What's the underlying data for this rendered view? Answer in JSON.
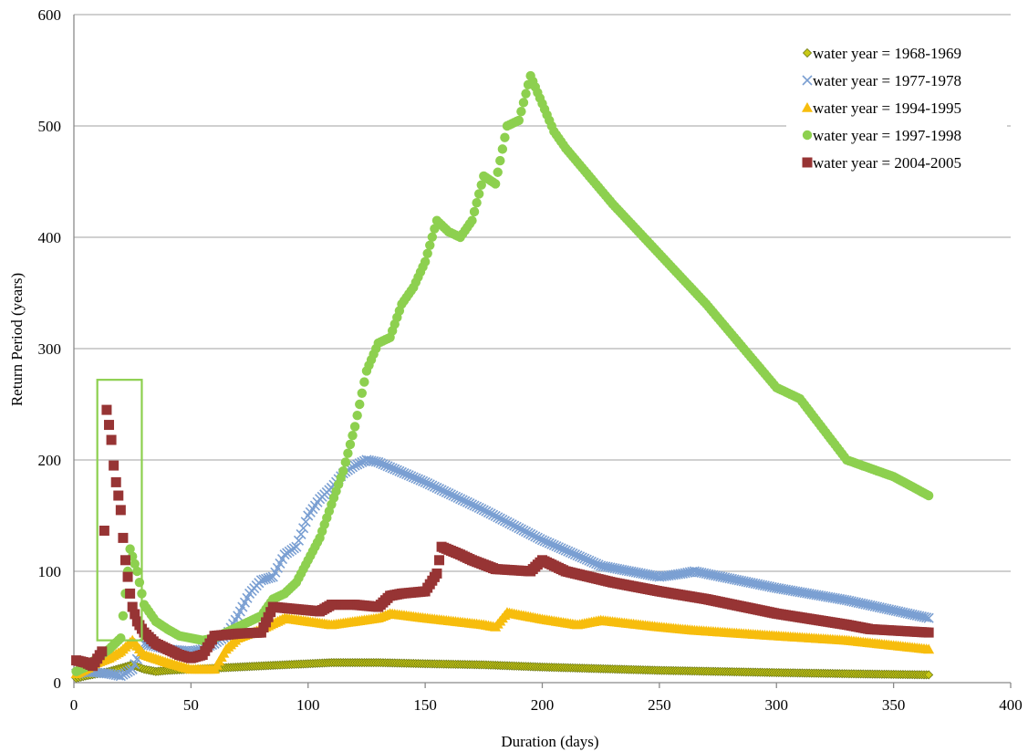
{
  "chart_data": {
    "type": "scatter",
    "title": "",
    "xlabel": "Duration (days)",
    "ylabel": "Return Period (years)",
    "xlim": [
      0,
      400
    ],
    "ylim": [
      0,
      600
    ],
    "xticks": [
      "0",
      "50",
      "100",
      "150",
      "200",
      "250",
      "300",
      "350",
      "400"
    ],
    "yticks": [
      "0",
      "100",
      "200",
      "300",
      "400",
      "500",
      "600"
    ],
    "grid": "horizontal",
    "legend_position": "top-right",
    "highlight_box": {
      "x": [
        10,
        29
      ],
      "y": [
        38,
        272
      ],
      "color": "#8DD04F"
    },
    "series": [
      {
        "name": "water year = 1968-1969",
        "marker": "diamond",
        "color": "#C9C916",
        "stroke": "#6E7A12",
        "points": [
          [
            1,
            4
          ],
          [
            5,
            6
          ],
          [
            10,
            8
          ],
          [
            15,
            10
          ],
          [
            20,
            13
          ],
          [
            25,
            16
          ],
          [
            30,
            12
          ],
          [
            35,
            10
          ],
          [
            40,
            11
          ],
          [
            50,
            12
          ],
          [
            60,
            13
          ],
          [
            70,
            14
          ],
          [
            80,
            15
          ],
          [
            90,
            16
          ],
          [
            100,
            17
          ],
          [
            110,
            18
          ],
          [
            120,
            18
          ],
          [
            130,
            18
          ],
          [
            150,
            17
          ],
          [
            175,
            16
          ],
          [
            200,
            14
          ],
          [
            250,
            11
          ],
          [
            300,
            9
          ],
          [
            330,
            8
          ],
          [
            365,
            7
          ]
        ]
      },
      {
        "name": "water year = 1977-1978",
        "marker": "x",
        "color": "#7A9FD2",
        "points": [
          [
            1,
            8
          ],
          [
            5,
            10
          ],
          [
            10,
            9
          ],
          [
            15,
            8
          ],
          [
            20,
            6
          ],
          [
            25,
            12
          ],
          [
            30,
            35
          ],
          [
            40,
            30
          ],
          [
            50,
            28
          ],
          [
            55,
            30
          ],
          [
            60,
            35
          ],
          [
            65,
            42
          ],
          [
            70,
            60
          ],
          [
            75,
            80
          ],
          [
            80,
            92
          ],
          [
            85,
            95
          ],
          [
            90,
            115
          ],
          [
            95,
            122
          ],
          [
            100,
            150
          ],
          [
            105,
            165
          ],
          [
            110,
            175
          ],
          [
            115,
            188
          ],
          [
            120,
            195
          ],
          [
            125,
            200
          ],
          [
            130,
            198
          ],
          [
            150,
            180
          ],
          [
            175,
            155
          ],
          [
            200,
            128
          ],
          [
            225,
            105
          ],
          [
            250,
            95
          ],
          [
            260,
            98
          ],
          [
            265,
            100
          ],
          [
            300,
            85
          ],
          [
            330,
            74
          ],
          [
            365,
            58
          ]
        ]
      },
      {
        "name": "water year = 1994-1995",
        "marker": "triangle",
        "color": "#F7BD0D",
        "points": [
          [
            1,
            8
          ],
          [
            5,
            12
          ],
          [
            10,
            18
          ],
          [
            15,
            22
          ],
          [
            20,
            28
          ],
          [
            25,
            38
          ],
          [
            30,
            25
          ],
          [
            40,
            18
          ],
          [
            50,
            12
          ],
          [
            60,
            12
          ],
          [
            65,
            30
          ],
          [
            70,
            40
          ],
          [
            80,
            48
          ],
          [
            90,
            58
          ],
          [
            100,
            55
          ],
          [
            110,
            52
          ],
          [
            120,
            55
          ],
          [
            130,
            58
          ],
          [
            135,
            62
          ],
          [
            150,
            58
          ],
          [
            175,
            52
          ],
          [
            180,
            50
          ],
          [
            185,
            63
          ],
          [
            200,
            57
          ],
          [
            215,
            52
          ],
          [
            225,
            56
          ],
          [
            250,
            50
          ],
          [
            265,
            47
          ],
          [
            300,
            42
          ],
          [
            330,
            38
          ],
          [
            365,
            30
          ]
        ]
      },
      {
        "name": "water year = 1997-1998",
        "marker": "circle",
        "color": "#8DD04F",
        "points": [
          [
            1,
            10
          ],
          [
            5,
            14
          ],
          [
            10,
            22
          ],
          [
            15,
            30
          ],
          [
            20,
            40
          ],
          [
            22,
            80
          ],
          [
            24,
            120
          ],
          [
            27,
            100
          ],
          [
            30,
            70
          ],
          [
            35,
            55
          ],
          [
            40,
            48
          ],
          [
            45,
            42
          ],
          [
            50,
            40
          ],
          [
            55,
            38
          ],
          [
            60,
            40
          ],
          [
            70,
            50
          ],
          [
            80,
            60
          ],
          [
            85,
            75
          ],
          [
            90,
            80
          ],
          [
            95,
            90
          ],
          [
            100,
            110
          ],
          [
            105,
            130
          ],
          [
            110,
            160
          ],
          [
            115,
            190
          ],
          [
            120,
            230
          ],
          [
            125,
            280
          ],
          [
            130,
            305
          ],
          [
            135,
            310
          ],
          [
            140,
            340
          ],
          [
            145,
            355
          ],
          [
            150,
            378
          ],
          [
            155,
            415
          ],
          [
            160,
            405
          ],
          [
            165,
            400
          ],
          [
            170,
            415
          ],
          [
            175,
            455
          ],
          [
            180,
            448
          ],
          [
            185,
            500
          ],
          [
            190,
            505
          ],
          [
            195,
            545
          ],
          [
            200,
            520
          ],
          [
            205,
            495
          ],
          [
            210,
            480
          ],
          [
            220,
            455
          ],
          [
            230,
            430
          ],
          [
            250,
            385
          ],
          [
            270,
            340
          ],
          [
            290,
            290
          ],
          [
            300,
            265
          ],
          [
            310,
            255
          ],
          [
            330,
            200
          ],
          [
            350,
            185
          ],
          [
            365,
            168
          ]
        ]
      },
      {
        "name": "water year = 2004-2005",
        "marker": "square",
        "color": "#973434",
        "points": [
          [
            1,
            20
          ],
          [
            5,
            18
          ],
          [
            8,
            15
          ],
          [
            12,
            28
          ],
          [
            14,
            245
          ],
          [
            16,
            218
          ],
          [
            17,
            195
          ],
          [
            18,
            180
          ],
          [
            19,
            168
          ],
          [
            20,
            155
          ],
          [
            21,
            130
          ],
          [
            22,
            110
          ],
          [
            23,
            95
          ],
          [
            24,
            80
          ],
          [
            25,
            68
          ],
          [
            27,
            55
          ],
          [
            30,
            45
          ],
          [
            35,
            35
          ],
          [
            40,
            30
          ],
          [
            45,
            25
          ],
          [
            50,
            22
          ],
          [
            55,
            25
          ],
          [
            60,
            42
          ],
          [
            70,
            44
          ],
          [
            80,
            45
          ],
          [
            85,
            68
          ],
          [
            95,
            66
          ],
          [
            105,
            64
          ],
          [
            110,
            70
          ],
          [
            120,
            70
          ],
          [
            130,
            68
          ],
          [
            135,
            78
          ],
          [
            140,
            80
          ],
          [
            150,
            82
          ],
          [
            155,
            98
          ],
          [
            157,
            122
          ],
          [
            165,
            115
          ],
          [
            170,
            110
          ],
          [
            180,
            102
          ],
          [
            195,
            100
          ],
          [
            200,
            110
          ],
          [
            210,
            100
          ],
          [
            230,
            90
          ],
          [
            250,
            82
          ],
          [
            270,
            75
          ],
          [
            300,
            62
          ],
          [
            330,
            52
          ],
          [
            340,
            48
          ],
          [
            365,
            45
          ]
        ]
      }
    ]
  }
}
